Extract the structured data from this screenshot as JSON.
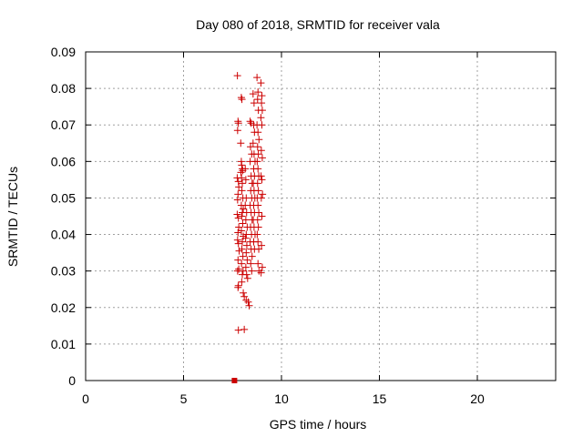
{
  "chart_data": {
    "type": "scatter",
    "title": "Day 080 of 2018, SRMTID for receiver vala",
    "xlabel": "GPS time / hours",
    "ylabel": "SRMTID / TECUs",
    "xlim": [
      0,
      24
    ],
    "ylim": [
      0,
      0.09
    ],
    "xticks": [
      0,
      5,
      10,
      15,
      20
    ],
    "yticks": [
      0,
      0.01,
      0.02,
      0.03,
      0.04,
      0.05,
      0.06,
      0.07,
      0.08,
      0.09
    ],
    "xtick_labels": [
      "0",
      "5",
      "10",
      "15",
      "20"
    ],
    "ytick_labels": [
      "0",
      "0.01",
      "0.02",
      "0.03",
      "0.04",
      "0.05",
      "0.06",
      "0.07",
      "0.08",
      "0.09"
    ],
    "grid": true,
    "marker": "plus",
    "color": "#cc0000",
    "series": [
      {
        "points": [
          [
            7.75,
            0.0835
          ],
          [
            7.78,
            0.071
          ],
          [
            7.8,
            0.0705
          ],
          [
            7.76,
            0.0685
          ],
          [
            7.74,
            0.0555
          ],
          [
            7.8,
            0.0545
          ],
          [
            7.82,
            0.053
          ],
          [
            7.78,
            0.051
          ],
          [
            7.76,
            0.0495
          ],
          [
            7.74,
            0.0455
          ],
          [
            7.8,
            0.0445
          ],
          [
            7.82,
            0.042
          ],
          [
            7.78,
            0.0405
          ],
          [
            7.76,
            0.0385
          ],
          [
            7.8,
            0.0375
          ],
          [
            7.84,
            0.0355
          ],
          [
            7.78,
            0.033
          ],
          [
            7.76,
            0.03
          ],
          [
            7.82,
            0.0305
          ],
          [
            7.8,
            0.026
          ],
          [
            7.78,
            0.0255
          ],
          [
            7.8,
            0.0138
          ],
          [
            7.95,
            0.0775
          ],
          [
            7.98,
            0.077
          ],
          [
            7.92,
            0.065
          ],
          [
            7.95,
            0.06
          ],
          [
            7.97,
            0.059
          ],
          [
            8.0,
            0.058
          ],
          [
            7.93,
            0.057
          ],
          [
            8.02,
            0.0575
          ],
          [
            7.96,
            0.0555
          ],
          [
            8.0,
            0.054
          ],
          [
            7.98,
            0.052
          ],
          [
            8.03,
            0.05
          ],
          [
            7.95,
            0.048
          ],
          [
            8.05,
            0.047
          ],
          [
            8.0,
            0.046
          ],
          [
            7.97,
            0.045
          ],
          [
            8.02,
            0.043
          ],
          [
            7.95,
            0.041
          ],
          [
            8.05,
            0.0395
          ],
          [
            8.0,
            0.038
          ],
          [
            7.98,
            0.036
          ],
          [
            8.03,
            0.034
          ],
          [
            7.96,
            0.032
          ],
          [
            8.04,
            0.03
          ],
          [
            8.0,
            0.029
          ],
          [
            7.97,
            0.027
          ],
          [
            8.05,
            0.024
          ],
          [
            8.1,
            0.023
          ],
          [
            8.1,
            0.014
          ],
          [
            8.15,
            0.058
          ],
          [
            8.18,
            0.055
          ],
          [
            8.2,
            0.05
          ],
          [
            8.15,
            0.048
          ],
          [
            8.22,
            0.046
          ],
          [
            8.18,
            0.044
          ],
          [
            8.25,
            0.042
          ],
          [
            8.2,
            0.04
          ],
          [
            8.17,
            0.039
          ],
          [
            8.23,
            0.037
          ],
          [
            8.2,
            0.035
          ],
          [
            8.25,
            0.033
          ],
          [
            8.18,
            0.031
          ],
          [
            8.22,
            0.029
          ],
          [
            8.27,
            0.028
          ],
          [
            8.2,
            0.022
          ],
          [
            8.3,
            0.0215
          ],
          [
            8.35,
            0.0205
          ],
          [
            8.4,
            0.071
          ],
          [
            8.45,
            0.0705
          ],
          [
            8.42,
            0.064
          ],
          [
            8.48,
            0.062
          ],
          [
            8.4,
            0.06
          ],
          [
            8.45,
            0.056
          ],
          [
            8.5,
            0.054
          ],
          [
            8.43,
            0.052
          ],
          [
            8.48,
            0.05
          ],
          [
            8.4,
            0.048
          ],
          [
            8.45,
            0.046
          ],
          [
            8.5,
            0.044
          ],
          [
            8.42,
            0.042
          ],
          [
            8.47,
            0.04
          ],
          [
            8.4,
            0.038
          ],
          [
            8.45,
            0.036
          ],
          [
            8.5,
            0.034
          ],
          [
            8.43,
            0.032
          ],
          [
            8.48,
            0.03
          ],
          [
            8.55,
            0.0785
          ],
          [
            8.6,
            0.076
          ],
          [
            8.58,
            0.07
          ],
          [
            8.62,
            0.068
          ],
          [
            8.55,
            0.065
          ],
          [
            8.6,
            0.062
          ],
          [
            8.65,
            0.06
          ],
          [
            8.58,
            0.058
          ],
          [
            8.62,
            0.056
          ],
          [
            8.56,
            0.054
          ],
          [
            8.6,
            0.052
          ],
          [
            8.64,
            0.05
          ],
          [
            8.58,
            0.048
          ],
          [
            8.62,
            0.046
          ],
          [
            8.56,
            0.044
          ],
          [
            8.6,
            0.042
          ],
          [
            8.65,
            0.04
          ],
          [
            8.58,
            0.038
          ],
          [
            8.62,
            0.036
          ],
          [
            8.75,
            0.083
          ],
          [
            8.8,
            0.079
          ],
          [
            8.78,
            0.077
          ],
          [
            8.82,
            0.074
          ],
          [
            8.75,
            0.07
          ],
          [
            8.8,
            0.068
          ],
          [
            8.85,
            0.066
          ],
          [
            8.78,
            0.064
          ],
          [
            8.82,
            0.062
          ],
          [
            8.76,
            0.06
          ],
          [
            8.8,
            0.058
          ],
          [
            8.84,
            0.056
          ],
          [
            8.78,
            0.054
          ],
          [
            8.82,
            0.052
          ],
          [
            8.76,
            0.05
          ],
          [
            8.8,
            0.048
          ],
          [
            8.84,
            0.046
          ],
          [
            8.78,
            0.044
          ],
          [
            8.82,
            0.042
          ],
          [
            8.76,
            0.04
          ],
          [
            8.8,
            0.038
          ],
          [
            8.84,
            0.036
          ],
          [
            8.8,
            0.032
          ],
          [
            8.85,
            0.03
          ],
          [
            8.95,
            0.0815
          ],
          [
            9.0,
            0.078
          ],
          [
            8.98,
            0.076
          ],
          [
            9.02,
            0.074
          ],
          [
            8.95,
            0.072
          ],
          [
            9.0,
            0.07
          ],
          [
            8.97,
            0.063
          ],
          [
            9.02,
            0.061
          ],
          [
            8.96,
            0.056
          ],
          [
            9.0,
            0.055
          ],
          [
            9.03,
            0.051
          ],
          [
            8.97,
            0.05
          ],
          [
            9.0,
            0.045
          ],
          [
            8.98,
            0.037
          ],
          [
            9.02,
            0.031
          ],
          [
            8.96,
            0.0295
          ]
        ]
      }
    ],
    "zero_point": [
      7.6,
      0
    ]
  }
}
